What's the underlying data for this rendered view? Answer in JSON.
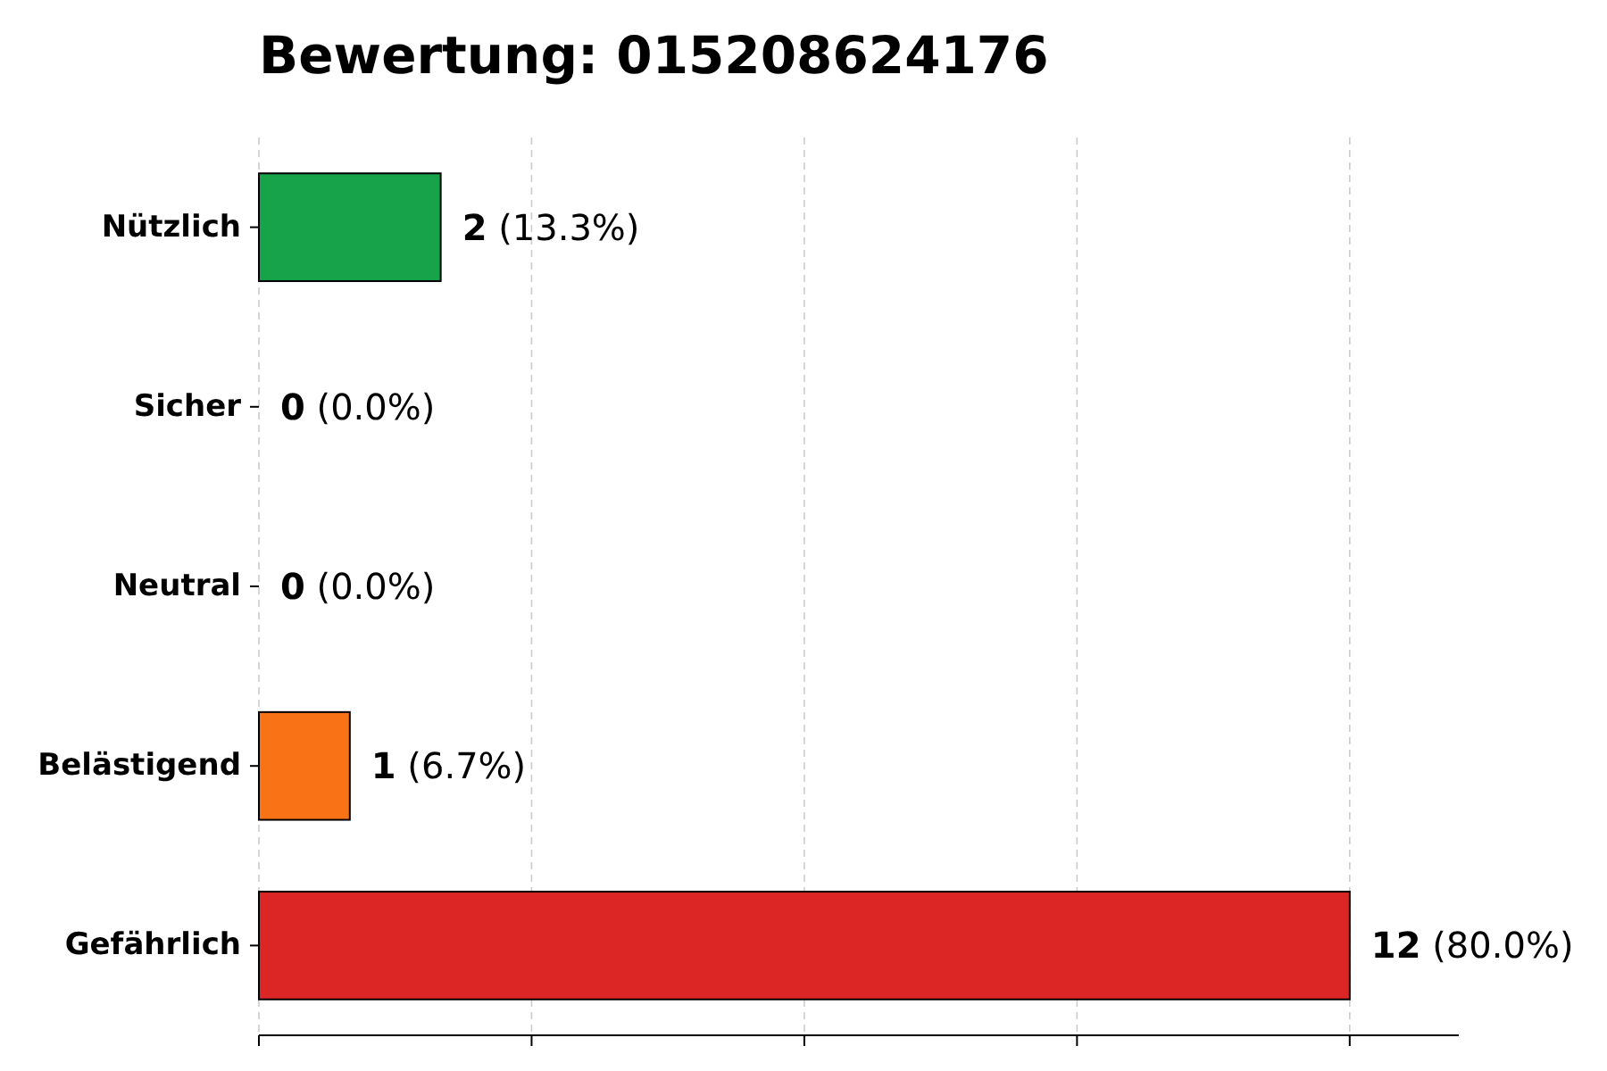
{
  "chart_data": {
    "type": "bar",
    "orientation": "horizontal",
    "title": "Bewertung: 015208624176",
    "categories": [
      "Nützlich",
      "Sicher",
      "Neutral",
      "Belästigend",
      "Gefährlich"
    ],
    "values": [
      2,
      0,
      0,
      1,
      12
    ],
    "colors": [
      "#16a34a",
      "#16a34a",
      "#16a34a",
      "#f97316",
      "#dc2626"
    ],
    "value_labels": [
      "2 (13.3%)",
      "0 (0.0%)",
      "0 (0.0%)",
      "1 (6.7%)",
      "12 (80.0%)"
    ],
    "xlim": [
      0,
      13.2
    ],
    "xticks": [
      {
        "value": 0,
        "label": null
      },
      {
        "value": 3,
        "label": null
      },
      {
        "value": 6,
        "label": null
      },
      {
        "value": 9,
        "label": null
      },
      {
        "value": 12,
        "label": null
      }
    ],
    "tick_labels": "y",
    "grid": "x"
  }
}
